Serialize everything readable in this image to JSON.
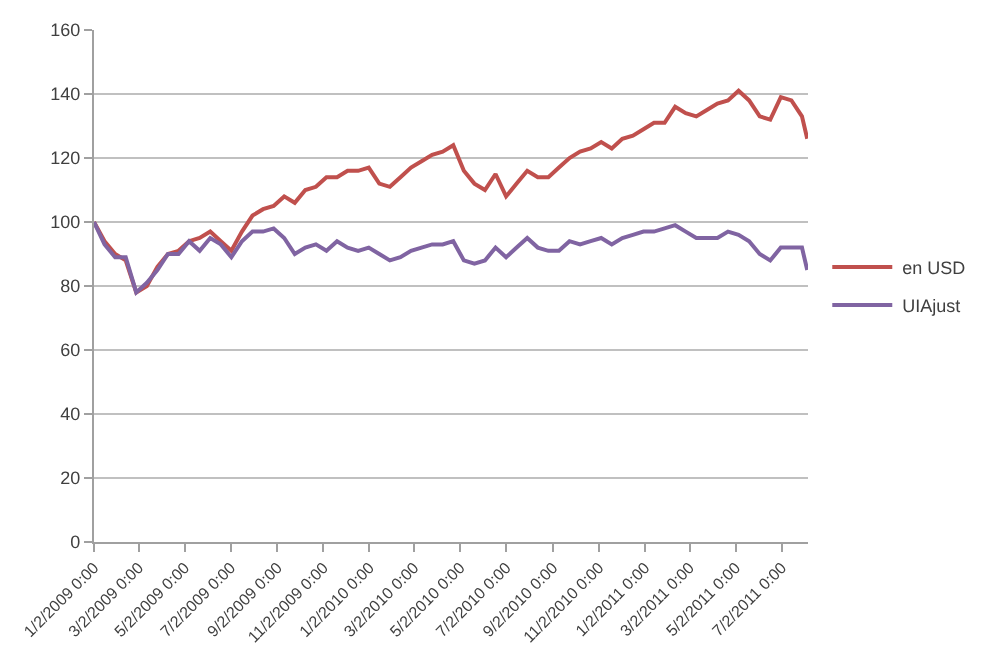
{
  "chart_data": {
    "type": "line",
    "x": [
      "2009-01-02",
      "2009-01-16",
      "2009-01-30",
      "2009-02-13",
      "2009-02-27",
      "2009-03-13",
      "2009-03-27",
      "2009-04-10",
      "2009-04-24",
      "2009-05-08",
      "2009-05-22",
      "2009-06-05",
      "2009-06-19",
      "2009-07-03",
      "2009-07-17",
      "2009-07-31",
      "2009-08-14",
      "2009-08-28",
      "2009-09-11",
      "2009-09-25",
      "2009-10-09",
      "2009-10-23",
      "2009-11-06",
      "2009-11-20",
      "2009-12-04",
      "2009-12-18",
      "2010-01-01",
      "2010-01-15",
      "2010-01-29",
      "2010-02-12",
      "2010-02-26",
      "2010-03-12",
      "2010-03-26",
      "2010-04-09",
      "2010-04-23",
      "2010-05-07",
      "2010-05-21",
      "2010-06-04",
      "2010-06-18",
      "2010-07-02",
      "2010-07-16",
      "2010-07-30",
      "2010-08-13",
      "2010-08-27",
      "2010-09-10",
      "2010-09-24",
      "2010-10-08",
      "2010-10-22",
      "2010-11-05",
      "2010-11-19",
      "2010-12-03",
      "2010-12-17",
      "2010-12-31",
      "2011-01-14",
      "2011-01-28",
      "2011-02-11",
      "2011-02-25",
      "2011-03-11",
      "2011-03-25",
      "2011-04-08",
      "2011-04-22",
      "2011-05-06",
      "2011-05-20",
      "2011-06-03",
      "2011-06-17",
      "2011-07-01",
      "2011-07-15",
      "2011-07-29",
      "2011-08-05"
    ],
    "series": [
      {
        "name": "en USD",
        "color": "#c0504d",
        "values": [
          100,
          94,
          90,
          88,
          78,
          80,
          86,
          90,
          91,
          94,
          95,
          97,
          94,
          91,
          97,
          102,
          104,
          105,
          108,
          106,
          110,
          111,
          114,
          114,
          116,
          116,
          117,
          112,
          111,
          114,
          117,
          119,
          121,
          122,
          124,
          116,
          112,
          110,
          115,
          108,
          112,
          116,
          114,
          114,
          117,
          120,
          122,
          123,
          125,
          123,
          126,
          127,
          129,
          131,
          131,
          136,
          134,
          133,
          135,
          137,
          138,
          141,
          138,
          133,
          132,
          139,
          138,
          133,
          126
        ]
      },
      {
        "name": "UIAjust",
        "color": "#8064a2",
        "values": [
          100,
          93,
          89,
          89,
          78,
          81,
          85,
          90,
          90,
          94,
          91,
          95,
          93,
          89,
          94,
          97,
          97,
          98,
          95,
          90,
          92,
          93,
          91,
          94,
          92,
          91,
          92,
          90,
          88,
          89,
          91,
          92,
          93,
          93,
          94,
          88,
          87,
          88,
          92,
          89,
          92,
          95,
          92,
          91,
          91,
          94,
          93,
          94,
          95,
          93,
          95,
          96,
          97,
          97,
          98,
          99,
          97,
          95,
          95,
          95,
          97,
          96,
          94,
          90,
          88,
          92,
          92,
          92,
          85
        ]
      }
    ],
    "xlim": [
      "2009-01-02",
      "2011-08-06"
    ],
    "xticks": [
      {
        "value": "2009-01-02",
        "label": "1/2/2009 0:00"
      },
      {
        "value": "2009-03-02",
        "label": "3/2/2009 0:00"
      },
      {
        "value": "2009-05-02",
        "label": "5/2/2009 0:00"
      },
      {
        "value": "2009-07-02",
        "label": "7/2/2009 0:00"
      },
      {
        "value": "2009-09-02",
        "label": "9/2/2009 0:00"
      },
      {
        "value": "2009-11-02",
        "label": "11/2/2009 0:00"
      },
      {
        "value": "2010-01-02",
        "label": "1/2/2010 0:00"
      },
      {
        "value": "2010-03-02",
        "label": "3/2/2010 0:00"
      },
      {
        "value": "2010-05-02",
        "label": "5/2/2010 0:00"
      },
      {
        "value": "2010-07-02",
        "label": "7/2/2010 0:00"
      },
      {
        "value": "2010-09-02",
        "label": "9/2/2010 0:00"
      },
      {
        "value": "2010-11-02",
        "label": "11/2/2010 0:00"
      },
      {
        "value": "2011-01-02",
        "label": "1/2/2011 0:00"
      },
      {
        "value": "2011-03-02",
        "label": "3/2/2011 0:00"
      },
      {
        "value": "2011-05-02",
        "label": "5/2/2011 0:00"
      },
      {
        "value": "2011-07-02",
        "label": "7/2/2011 0:00"
      }
    ],
    "ylim": [
      0,
      160
    ],
    "yticks": [
      0,
      20,
      40,
      60,
      80,
      100,
      120,
      140,
      160
    ],
    "grid": "y",
    "legend": "right",
    "marker": "none",
    "line_style": "solid"
  }
}
